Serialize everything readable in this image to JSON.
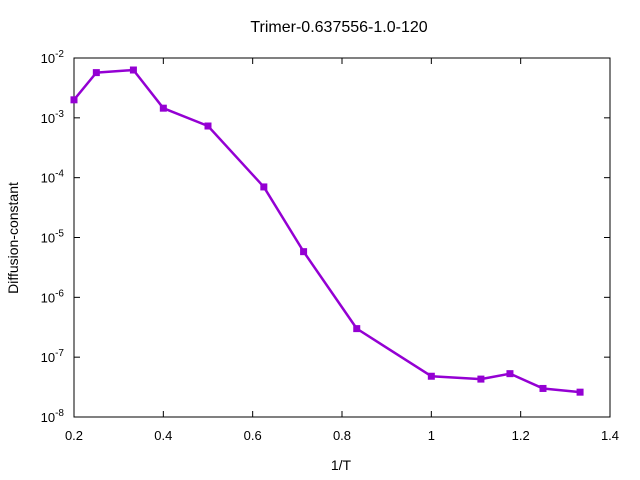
{
  "chart_data": {
    "type": "line",
    "title": "Trimer-0.637556-1.0-120",
    "xlabel": "1/T",
    "ylabel": "Diffusion-constant",
    "xlim": [
      0.2,
      1.4
    ],
    "ylim": [
      1e-08,
      0.01
    ],
    "yscale": "log",
    "grid": false,
    "x_ticks": [
      {
        "value": 0.2,
        "label": "0.2"
      },
      {
        "value": 0.4,
        "label": "0.4"
      },
      {
        "value": 0.6,
        "label": "0.6"
      },
      {
        "value": 0.8,
        "label": "0.8"
      },
      {
        "value": 1.0,
        "label": "1"
      },
      {
        "value": 1.2,
        "label": "1.2"
      },
      {
        "value": 1.4,
        "label": "1.4"
      }
    ],
    "y_ticks": [
      {
        "value": 1e-08,
        "base": "10",
        "exp": "-8"
      },
      {
        "value": 1e-07,
        "base": "10",
        "exp": "-7"
      },
      {
        "value": 1e-06,
        "base": "10",
        "exp": "-6"
      },
      {
        "value": 1e-05,
        "base": "10",
        "exp": "-5"
      },
      {
        "value": 0.0001,
        "base": "10",
        "exp": "-4"
      },
      {
        "value": 0.001,
        "base": "10",
        "exp": "-3"
      },
      {
        "value": 0.01,
        "base": "10",
        "exp": "-2"
      }
    ],
    "series": [
      {
        "color": "#9400d3",
        "x": [
          0.2,
          0.25,
          0.333,
          0.4,
          0.5,
          0.625,
          0.714,
          0.833,
          1.0,
          1.111,
          1.176,
          1.25,
          1.333
        ],
        "y": [
          0.002,
          0.0057,
          0.0063,
          0.00145,
          0.00073,
          7e-05,
          5.8e-06,
          3e-07,
          4.8e-08,
          4.3e-08,
          5.3e-08,
          3e-08,
          2.6e-08
        ]
      }
    ]
  }
}
